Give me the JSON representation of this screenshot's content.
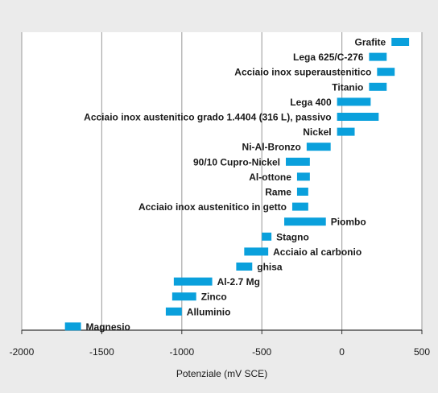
{
  "chart_data": {
    "type": "bar",
    "orientation": "horizontal-range",
    "xlabel": "Potenziale (mV SCE)",
    "xlim": [
      -2000,
      500
    ],
    "xticks": [
      -2000,
      -1500,
      -1000,
      -500,
      0,
      500
    ],
    "xtick_labels": [
      "-2000",
      "-1500",
      "-1000",
      "-500",
      "0",
      "500"
    ],
    "grid": true,
    "bar_color": "#0aa0dc",
    "series": [
      {
        "label": "Grafite",
        "range": [
          310,
          420
        ],
        "label_side": "left"
      },
      {
        "label": "Lega 625/C-276",
        "range": [
          170,
          280
        ],
        "label_side": "left"
      },
      {
        "label": "Acciaio inox superaustenitico",
        "range": [
          220,
          330
        ],
        "label_side": "left"
      },
      {
        "label": "Titanio",
        "range": [
          170,
          280
        ],
        "label_side": "left"
      },
      {
        "label": "Lega 400",
        "range": [
          -30,
          180
        ],
        "label_side": "left"
      },
      {
        "label": "Acciaio inox austenitico grado 1.4404 (316 L), passivo",
        "range": [
          -30,
          230
        ],
        "label_side": "left"
      },
      {
        "label": "Nickel",
        "range": [
          -30,
          80
        ],
        "label_side": "left"
      },
      {
        "label": "Ni-Al-Bronzo",
        "range": [
          -220,
          -70
        ],
        "label_side": "left"
      },
      {
        "label": "90/10 Cupro-Nickel",
        "range": [
          -350,
          -200
        ],
        "label_side": "left"
      },
      {
        "label": "Al-ottone",
        "range": [
          -280,
          -200
        ],
        "label_side": "left"
      },
      {
        "label": "Rame",
        "range": [
          -280,
          -210
        ],
        "label_side": "left"
      },
      {
        "label": "Acciaio inox austenitico in getto",
        "range": [
          -310,
          -210
        ],
        "label_side": "left"
      },
      {
        "label": "Piombo",
        "range": [
          -360,
          -100
        ],
        "label_side": "right"
      },
      {
        "label": "Stagno",
        "range": [
          -500,
          -440
        ],
        "label_side": "right"
      },
      {
        "label": "Acciaio al carbonio",
        "range": [
          -610,
          -460
        ],
        "label_side": "right"
      },
      {
        "label": "ghisa",
        "range": [
          -660,
          -560
        ],
        "label_side": "right"
      },
      {
        "label": "Al-2.7 Mg",
        "range": [
          -1050,
          -810
        ],
        "label_side": "right"
      },
      {
        "label": "Zinco",
        "range": [
          -1060,
          -910
        ],
        "label_side": "right"
      },
      {
        "label": "Alluminio",
        "range": [
          -1100,
          -1000
        ],
        "label_side": "right"
      },
      {
        "label": "Magnesio",
        "range": [
          -1730,
          -1630
        ],
        "label_side": "right"
      }
    ]
  }
}
